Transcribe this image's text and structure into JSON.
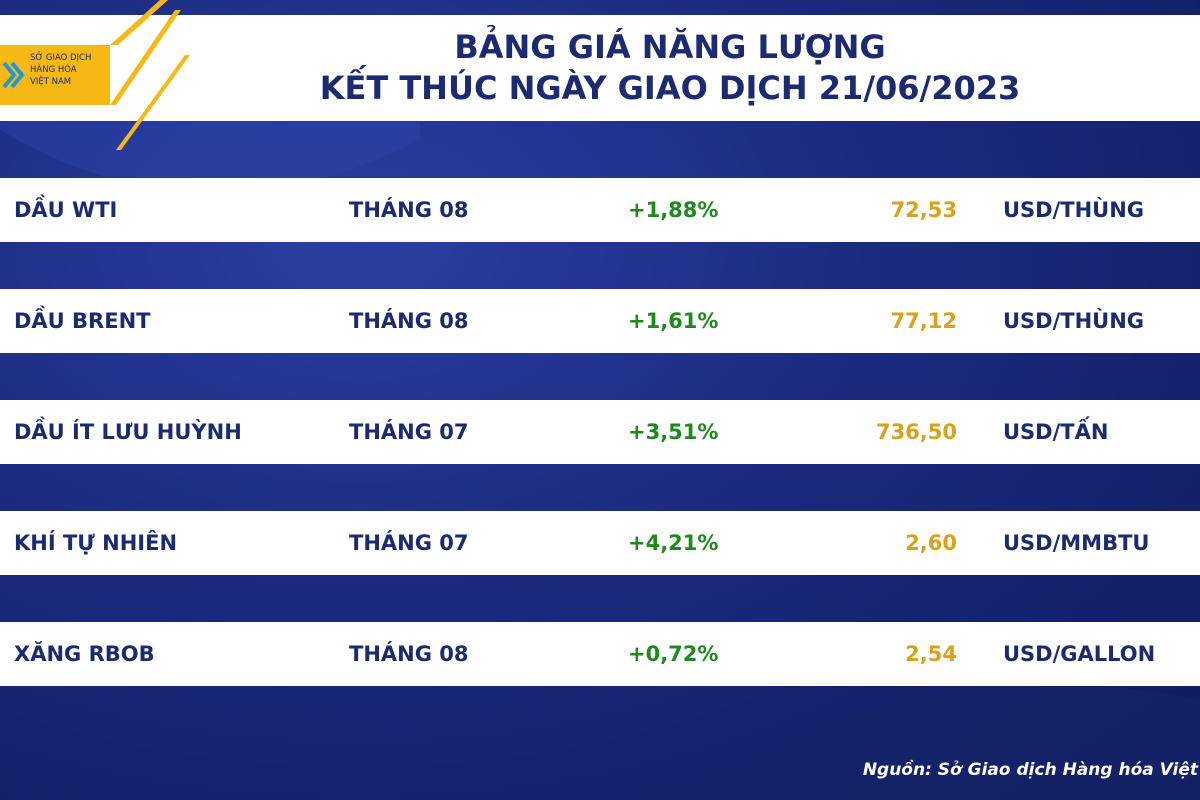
{
  "header": {
    "logo": [
      "SỞ GIAO DỊCH",
      "HÀNG HÓA",
      "VIỆT NAM"
    ],
    "title": [
      "BẢNG GIÁ NĂNG LƯỢNG",
      "KẾT THÚC NGÀY GIAO DỊCH 21/06/2023"
    ]
  },
  "table": {
    "rows": [
      [
        "DẦU WTI",
        "THÁNG 08",
        "+1,88%",
        "72,53",
        "USD/THÙNG"
      ],
      [
        "DẦU BRENT",
        "THÁNG 08",
        "+1,61%",
        "77,12",
        "USD/THÙNG"
      ],
      [
        "DẦU ÍT LƯU HUỲNH",
        "THÁNG 07",
        "+3,51%",
        "736,50",
        "USD/TẤN"
      ],
      [
        "KHÍ TỰ NHIÊN",
        "THÁNG 07",
        "+4,21%",
        "2,60",
        "USD/MMBTU"
      ],
      [
        "XĂNG RBOB",
        "THÁNG 08",
        "+0,72%",
        "2,54",
        "USD/GALLON"
      ]
    ]
  },
  "footer": {
    "source": "Nguồn: Sở Giao dịch Hàng hóa Việt"
  }
}
